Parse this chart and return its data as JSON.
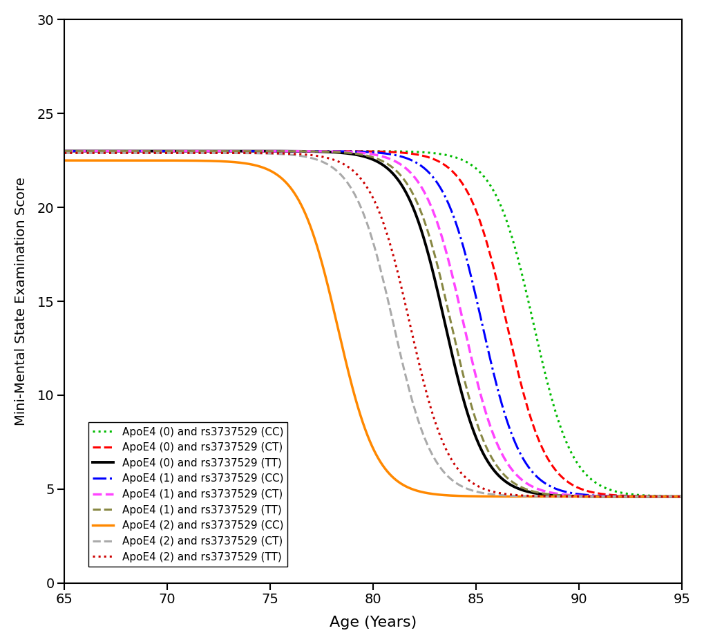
{
  "xlabel": "Age (Years)",
  "ylabel": "Mini-Mental State Examination Score",
  "xlim": [
    65,
    95
  ],
  "ylim": [
    0,
    30
  ],
  "xticks": [
    65,
    70,
    75,
    80,
    85,
    90,
    95
  ],
  "yticks": [
    0,
    5,
    10,
    15,
    20,
    25,
    30
  ],
  "background_color": "#ffffff",
  "series": [
    {
      "label": "ApoE4 (0) and rs3737529 (CC)",
      "color": "#00bb00",
      "linestyle": "dotted",
      "linewidth": 2.2,
      "upper": 23.0,
      "lower": 4.6,
      "k": 1.05,
      "x0": 87.8
    },
    {
      "label": "ApoE4 (0) and rs3737529 (CT)",
      "color": "#ff0000",
      "linestyle": "dashed",
      "linewidth": 2.2,
      "upper": 23.0,
      "lower": 4.6,
      "k": 1.05,
      "x0": 86.5
    },
    {
      "label": "ApoE4 (0) and rs3737529 (TT)",
      "color": "#000000",
      "linestyle": "solid",
      "linewidth": 2.8,
      "upper": 23.0,
      "lower": 4.6,
      "k": 1.05,
      "x0": 83.5
    },
    {
      "label": "ApoE4 (1) and rs3737529 (CC)",
      "color": "#0000ff",
      "linestyle": "dashdot",
      "linewidth": 2.2,
      "upper": 23.0,
      "lower": 4.6,
      "k": 1.05,
      "x0": 85.3
    },
    {
      "label": "ApoE4 (1) and rs3737529 (CT)",
      "color": "#ff44ff",
      "linestyle": "dashed",
      "linewidth": 2.5,
      "upper": 23.0,
      "lower": 4.6,
      "k": 1.05,
      "x0": 84.4
    },
    {
      "label": "ApoE4 (1) and rs3737529 (TT)",
      "color": "#888844",
      "linestyle": "dashed",
      "linewidth": 2.2,
      "upper": 23.0,
      "lower": 4.6,
      "k": 1.05,
      "x0": 83.8
    },
    {
      "label": "ApoE4 (2) and rs3737529 (CC)",
      "color": "#ff8800",
      "linestyle": "solid",
      "linewidth": 2.5,
      "upper": 22.5,
      "lower": 4.6,
      "k": 1.05,
      "x0": 78.3
    },
    {
      "label": "ApoE4 (2) and rs3737529 (CT)",
      "color": "#aaaaaa",
      "linestyle": "dashed",
      "linewidth": 2.2,
      "upper": 22.9,
      "lower": 4.6,
      "k": 1.05,
      "x0": 81.0
    },
    {
      "label": "ApoE4 (2) and rs3737529 (TT)",
      "color": "#cc0000",
      "linestyle": "dotted",
      "linewidth": 2.2,
      "upper": 22.9,
      "lower": 4.6,
      "k": 1.05,
      "x0": 81.8
    }
  ]
}
